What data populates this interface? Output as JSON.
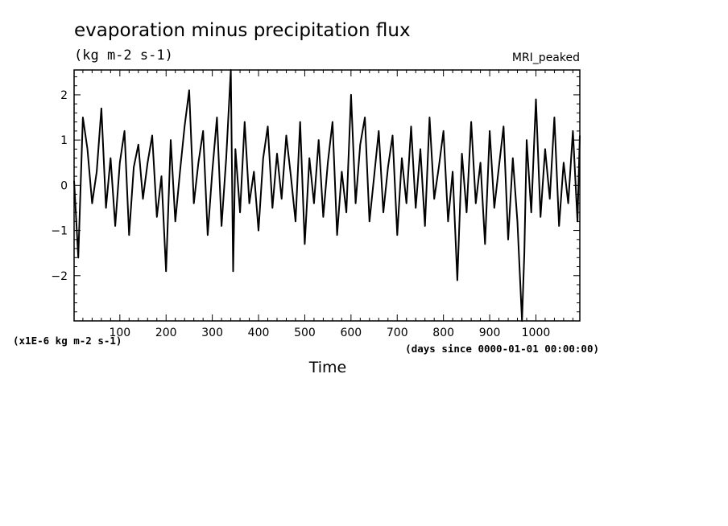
{
  "chart_data": {
    "type": "line",
    "title": "evaporation minus precipitation flux",
    "units_label": "(kg m-2 s-1)",
    "model_label": "MRI_peaked",
    "xlabel": "Time",
    "xunits": "(days since 0000-01-01 00:00:00)",
    "yscale_label": "(x1E-6 kg m-2 s-1)",
    "xlim": [
      1,
      1095
    ],
    "ylim": [
      -3,
      2.55
    ],
    "x_ticks": [
      "100",
      "200",
      "300",
      "400",
      "500",
      "600",
      "700",
      "800",
      "900",
      "1000"
    ],
    "y_ticks": [
      "2",
      "1",
      "0",
      "−1",
      "−2"
    ],
    "line_color": "#000000",
    "series": [
      {
        "x": [
          1,
          10,
          20,
          30,
          40,
          50,
          60,
          70,
          80,
          90,
          100,
          110,
          120,
          130,
          140,
          150,
          160,
          170,
          180,
          190,
          200,
          210,
          220,
          230,
          240,
          250,
          260,
          270,
          280,
          290,
          300,
          310,
          320,
          330,
          340,
          345,
          350,
          360,
          370,
          380,
          390,
          400,
          410,
          420,
          430,
          440,
          450,
          460,
          470,
          480,
          490,
          500,
          510,
          520,
          530,
          540,
          550,
          560,
          570,
          580,
          590,
          600,
          610,
          620,
          630,
          640,
          650,
          660,
          670,
          680,
          690,
          700,
          710,
          720,
          730,
          740,
          750,
          760,
          770,
          780,
          790,
          800,
          810,
          820,
          830,
          840,
          850,
          860,
          870,
          880,
          890,
          900,
          910,
          920,
          930,
          940,
          950,
          960,
          970,
          975,
          980,
          990,
          1000,
          1010,
          1020,
          1030,
          1040,
          1050,
          1060,
          1070,
          1080,
          1090,
          1095
        ],
        "y": [
          0.1,
          -1.6,
          1.5,
          0.8,
          -0.4,
          0.3,
          1.7,
          -0.5,
          0.6,
          -0.9,
          0.5,
          1.2,
          -1.1,
          0.4,
          0.9,
          -0.3,
          0.5,
          1.1,
          -0.7,
          0.2,
          -1.9,
          1.0,
          -0.8,
          0.3,
          1.3,
          2.1,
          -0.4,
          0.5,
          1.2,
          -1.1,
          0.3,
          1.5,
          -0.9,
          0.6,
          2.55,
          -1.9,
          0.8,
          -0.6,
          1.4,
          -0.4,
          0.3,
          -1.0,
          0.6,
          1.3,
          -0.5,
          0.7,
          -0.3,
          1.1,
          0.2,
          -0.8,
          1.4,
          -1.3,
          0.6,
          -0.4,
          1.0,
          -0.7,
          0.5,
          1.4,
          -1.1,
          0.3,
          -0.6,
          2.0,
          -0.4,
          0.9,
          1.5,
          -0.8,
          0.2,
          1.2,
          -0.6,
          0.4,
          1.1,
          -1.1,
          0.6,
          -0.4,
          1.3,
          -0.5,
          0.8,
          -0.9,
          1.5,
          -0.3,
          0.4,
          1.2,
          -0.8,
          0.3,
          -2.1,
          0.7,
          -0.6,
          1.4,
          -0.4,
          0.5,
          -1.3,
          1.2,
          -0.5,
          0.4,
          1.3,
          -1.2,
          0.6,
          -0.8,
          -3.0,
          -1.5,
          1.0,
          -0.6,
          1.9,
          -0.7,
          0.8,
          -0.3,
          1.5,
          -0.9,
          0.5,
          -0.4,
          1.2,
          -0.8,
          1.1
        ]
      }
    ]
  }
}
